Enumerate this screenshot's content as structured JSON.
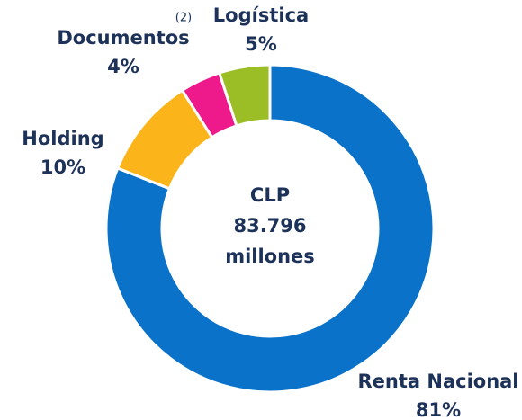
{
  "chart_data": {
    "type": "donut",
    "categories": [
      "Renta Nacional",
      "Holding",
      "Documentos",
      "Logística"
    ],
    "values": [
      81,
      10,
      4,
      5
    ],
    "value_labels": [
      "81%",
      "10%",
      "4%",
      "5%"
    ],
    "colors": [
      "#0a72c9",
      "#fbb41a",
      "#ee1a8c",
      "#9bbe26"
    ],
    "center_text": [
      "CLP",
      "83.796",
      "millones"
    ],
    "annotation": "(2)"
  }
}
